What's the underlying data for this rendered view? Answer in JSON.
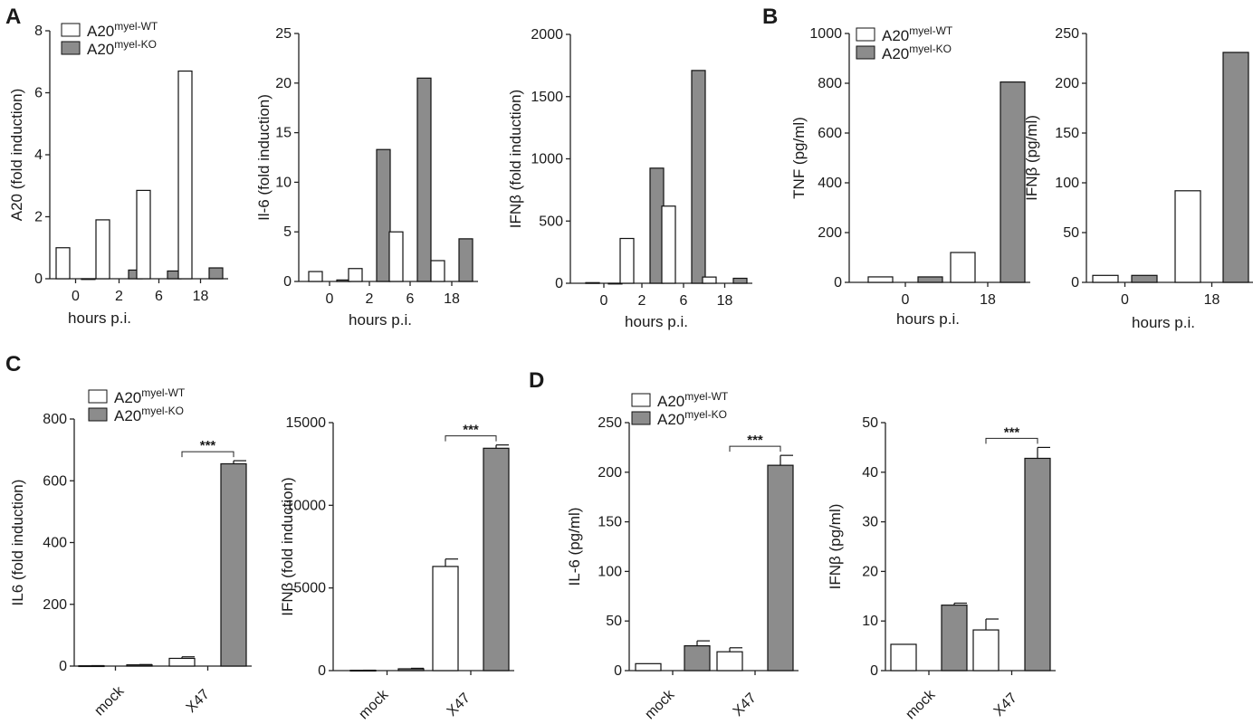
{
  "panels": [
    {
      "letter": "A"
    },
    {
      "letter": "B"
    },
    {
      "letter": "C"
    },
    {
      "letter": "D"
    }
  ],
  "legend": {
    "wt_base": "A20",
    "wt_sup": "myel-WT",
    "ko_base": "A20",
    "ko_sup": "myel-KO",
    "wt_color": "#ffffff",
    "ko_color": "#8c8c8c"
  },
  "chart_data": [
    {
      "id": "A1",
      "type": "bar",
      "panel": "A",
      "categories": [
        "0",
        "2",
        "6",
        "18"
      ],
      "series": [
        {
          "name": "A20myel-WT",
          "values": [
            1.0,
            1.9,
            2.85,
            6.7
          ]
        },
        {
          "name": "A20myel-KO",
          "values": [
            0,
            0.28,
            0.25,
            0.35
          ]
        }
      ],
      "xlabel": "hours p.i.",
      "ylabel": "A20 (fold induction)",
      "ylim": [
        0,
        8
      ],
      "yticks": [
        0,
        2,
        4,
        6,
        8
      ],
      "legend": "top-left"
    },
    {
      "id": "A2",
      "type": "bar",
      "panel": "A",
      "categories": [
        "0",
        "2",
        "6",
        "18"
      ],
      "series": [
        {
          "name": "A20myel-WT",
          "values": [
            1.0,
            1.3,
            5.0,
            2.1
          ]
        },
        {
          "name": "A20myel-KO",
          "values": [
            0.15,
            13.3,
            20.5,
            4.3
          ]
        }
      ],
      "xlabel": "hours p.i.",
      "ylabel": "Il-6 (fold induction)",
      "ylim": [
        0,
        25
      ],
      "yticks": [
        0,
        5,
        10,
        15,
        20,
        25
      ]
    },
    {
      "id": "A3",
      "type": "bar",
      "panel": "A",
      "categories": [
        "0",
        "2",
        "6",
        "18"
      ],
      "series": [
        {
          "name": "A20myel-WT",
          "values": [
            5,
            360,
            620,
            50
          ]
        },
        {
          "name": "A20myel-KO",
          "values": [
            0,
            925,
            1710,
            40
          ]
        }
      ],
      "xlabel": "hours p.i.",
      "ylabel": "IFNβ (fold induction)",
      "ylim": [
        0,
        2000
      ],
      "yticks": [
        0,
        500,
        1000,
        1500,
        2000
      ]
    },
    {
      "id": "B1",
      "type": "bar",
      "panel": "B",
      "categories": [
        "0",
        "18"
      ],
      "series": [
        {
          "name": "A20myel-WT",
          "values": [
            22,
            120
          ]
        },
        {
          "name": "A20myel-KO",
          "values": [
            22,
            805
          ]
        }
      ],
      "xlabel": "hours p.i.",
      "ylabel": "TNF (pg/ml)",
      "ylim": [
        0,
        1000
      ],
      "yticks": [
        0,
        200,
        400,
        600,
        800,
        1000
      ],
      "legend": "top-left"
    },
    {
      "id": "B2",
      "type": "bar",
      "panel": "B",
      "categories": [
        "0",
        "18"
      ],
      "series": [
        {
          "name": "A20myel-WT",
          "values": [
            7,
            92
          ]
        },
        {
          "name": "A20myel-KO",
          "values": [
            7,
            231
          ]
        }
      ],
      "xlabel": "hours p.i.",
      "ylabel": "IFNβ (pg/ml)",
      "ylim": [
        0,
        250
      ],
      "yticks": [
        0,
        50,
        100,
        150,
        200,
        250
      ]
    },
    {
      "id": "C1",
      "type": "bar",
      "panel": "C",
      "categories": [
        "mock",
        "X47"
      ],
      "series": [
        {
          "name": "A20myel-WT",
          "values": [
            1,
            25
          ],
          "errors": [
            0.5,
            5
          ]
        },
        {
          "name": "A20myel-KO",
          "values": [
            4,
            655
          ],
          "errors": [
            1,
            10
          ]
        }
      ],
      "ylabel": "IL6 (fold induction)",
      "ylim": [
        0,
        800
      ],
      "yticks": [
        0,
        200,
        400,
        600,
        800
      ],
      "legend": "top-left",
      "significance": {
        "category": "X47",
        "label": "***"
      }
    },
    {
      "id": "C2",
      "type": "bar",
      "panel": "C",
      "categories": [
        "mock",
        "X47"
      ],
      "series": [
        {
          "name": "A20myel-WT",
          "values": [
            20,
            6300
          ],
          "errors": [
            5,
            450
          ]
        },
        {
          "name": "A20myel-KO",
          "values": [
            110,
            13450
          ],
          "errors": [
            30,
            200
          ]
        }
      ],
      "ylabel": "IFNβ (fold induction)",
      "ylim": [
        0,
        15000
      ],
      "yticks": [
        0,
        5000,
        10000,
        15000
      ],
      "significance": {
        "category": "X47",
        "label": "***"
      }
    },
    {
      "id": "D1",
      "type": "bar",
      "panel": "D",
      "categories": [
        "mock",
        "X47"
      ],
      "series": [
        {
          "name": "A20myel-WT",
          "values": [
            7,
            19
          ],
          "errors": [
            0,
            4
          ]
        },
        {
          "name": "A20myel-KO",
          "values": [
            25,
            207
          ],
          "errors": [
            5,
            10
          ]
        }
      ],
      "ylabel": "IL-6 (pg/ml)",
      "ylim": [
        0,
        250
      ],
      "yticks": [
        0,
        50,
        100,
        150,
        200,
        250
      ],
      "legend": "top-left",
      "significance": {
        "category": "X47",
        "label": "***"
      }
    },
    {
      "id": "D2",
      "type": "bar",
      "panel": "D",
      "categories": [
        "mock",
        "X47"
      ],
      "series": [
        {
          "name": "A20myel-WT",
          "values": [
            5.3,
            8.2
          ],
          "errors": [
            0,
            2.2
          ]
        },
        {
          "name": "A20myel-KO",
          "values": [
            13.2,
            42.8
          ],
          "errors": [
            0.4,
            2.2
          ]
        }
      ],
      "ylabel": "IFNβ (pg/ml)",
      "ylim": [
        0,
        50
      ],
      "yticks": [
        0,
        10,
        20,
        30,
        40,
        50
      ],
      "significance": {
        "category": "X47",
        "label": "***"
      }
    }
  ]
}
